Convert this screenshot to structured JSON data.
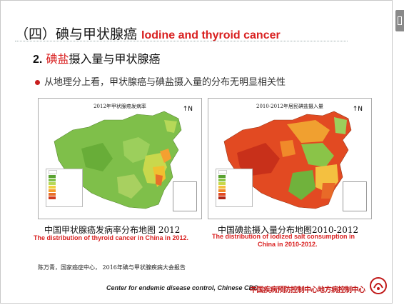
{
  "slide": {
    "heading_cn": "（四）碘与甲状腺癌",
    "heading_en": "Iodine and thyroid cancer",
    "sub_number": "2.",
    "sub_red": "碘盐",
    "sub_rest": "摄入量与甲状腺癌",
    "bullet": "从地理分上看，甲状腺癌与碘盐摄入量的分布无明显相关性",
    "map1": {
      "title": "2012年甲状腺癌发病率",
      "caption_cn": "中国甲状腺癌发病率分布地图 2012",
      "caption_en": "The distribution of thyroid cancer in China in 2012."
    },
    "map2": {
      "title": "2010-2012年居民碘盐摄入量",
      "caption_cn": "中国碘盐摄入量分布地图2010-2012",
      "caption_en_line1": "The distribution of iodized salt consumption in",
      "caption_en_line2": "China in 2010-2012."
    },
    "reference": "陈万青，国家癌症中心， 2016年碘与甲状腺疾病大会报告",
    "footer_en": "Center for endemic disease control, Chinese CDC",
    "footer_cn": "中国疾病预防控制中心地方病控制中心"
  },
  "colors": {
    "accent_red": "#d92020",
    "map_green": "#6db33f",
    "map_red": "#e03a1e"
  },
  "icons": [
    "compass-icon",
    "bullet-dot-icon",
    "cdc-logo-icon",
    "side-tab-icon"
  ]
}
